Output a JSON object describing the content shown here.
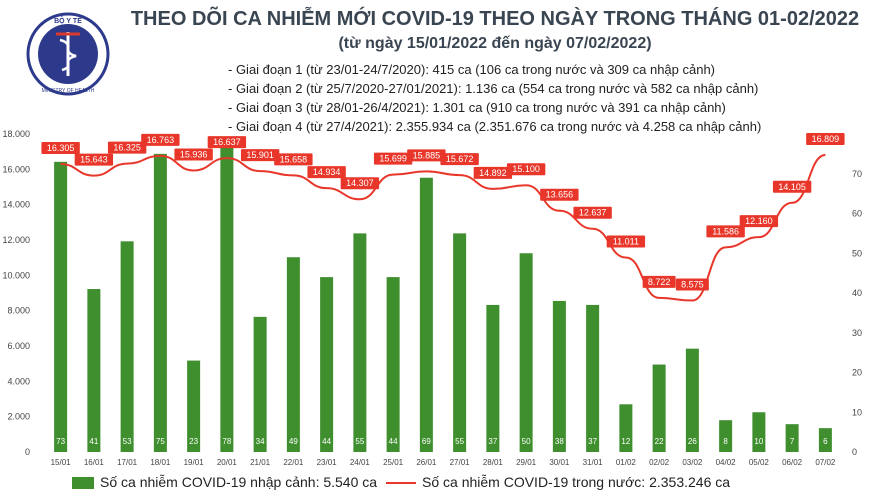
{
  "title": "THEO DÕI CA NHIỄM MỚI COVID-19 THEO NGÀY TRONG THÁNG 01-02/2022",
  "subtitle": "(từ ngày 15/01/2022 đến ngày 07/02/2022)",
  "phases": [
    "- Giai đoạn 1 (từ 23/01-24/7/2020): 415 ca (106 ca trong nước và 309 ca nhập cảnh)",
    "- Giai đoạn 2 (từ 25/7/2020-27/01/2021): 1.136 ca (554 ca trong nước và 582 ca nhập cảnh)",
    "- Giai đoạn 3 (từ 28/01-26/4/2021): 1.301 ca (910 ca trong nước và 391 ca nhập cảnh)",
    "- Giai đoạn 4 (từ 27/4/2021): 2.355.934 ca (2.351.676 ca trong nước và 4.258 ca nhập cảnh)"
  ],
  "logo": {
    "text": "BỘ Y TẾ",
    "caption": "MINISTRY OF HEALTH"
  },
  "legend": {
    "bars": "Số ca nhiễm COVID-19 nhập cảnh: 5.540 ca",
    "line": "Số ca nhiễm COVID-19 trong nước: 2.353.246 ca"
  },
  "colors": {
    "bar": "#3f8f2f",
    "line": "#e8372a",
    "bar_label_text": "#ffffff",
    "axis_text": "#444444"
  },
  "chart_data": {
    "type": "bar+line",
    "categories": [
      "15/01",
      "16/01",
      "17/01",
      "18/01",
      "19/01",
      "20/01",
      "21/01",
      "22/01",
      "23/01",
      "24/01",
      "25/01",
      "26/01",
      "27/01",
      "28/01",
      "29/01",
      "30/01",
      "31/01",
      "01/02",
      "02/02",
      "03/02",
      "04/02",
      "05/02",
      "06/02",
      "07/02"
    ],
    "series": [
      {
        "name": "Số ca nhiễm COVID-19 nhập cảnh: 5.540 ca",
        "type": "bar",
        "axis": "right",
        "values": [
          73,
          41,
          53,
          75,
          23,
          78,
          34,
          49,
          44,
          55,
          44,
          69,
          55,
          37,
          50,
          38,
          37,
          12,
          22,
          26,
          8,
          10,
          7,
          6
        ],
        "labels": [
          "73",
          "41",
          "53",
          "75",
          "23",
          "78",
          "34",
          "49",
          "44",
          "55",
          "44",
          "69",
          "55",
          "37",
          "50",
          "38",
          "37",
          "12",
          "22",
          "26",
          "8",
          "10",
          "7",
          "6"
        ]
      },
      {
        "name": "Số ca nhiễm COVID-19 trong nước: 2.353.246 ca",
        "type": "line",
        "axis": "left",
        "values": [
          16305,
          15643,
          16325,
          16763,
          15936,
          16637,
          15901,
          15658,
          14934,
          14307,
          15699,
          15885,
          15672,
          14892,
          15100,
          13656,
          12637,
          11011,
          8722,
          8575,
          11586,
          12160,
          14105,
          16809
        ],
        "labels": [
          "16.305",
          "15.643",
          "16.325",
          "16.763",
          "15.936",
          "16.637",
          "15.901",
          "15.658",
          "14.934",
          "14.307",
          "15.699",
          "15.885",
          "15.672",
          "14.892",
          "15.100",
          "13.656",
          "12.637",
          "11.011",
          "8.722",
          "8.575",
          "11.586",
          "12.160",
          "14.105",
          "16.809"
        ]
      }
    ],
    "y_left": {
      "range": [
        0,
        18000
      ],
      "ticks": [
        "0",
        "2.000",
        "4.000",
        "6.000",
        "8.000",
        "10.000",
        "12.000",
        "14.000",
        "16.000",
        "18.000"
      ]
    },
    "y_right": {
      "range": [
        0,
        80
      ],
      "ticks": [
        "0",
        "10",
        "20",
        "30",
        "40",
        "50",
        "60",
        "70"
      ]
    },
    "legend_position": "bottom",
    "grid": false
  }
}
